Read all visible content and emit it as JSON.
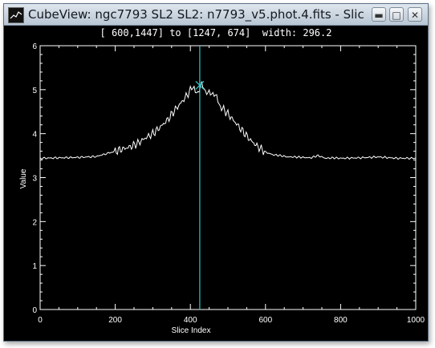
{
  "window": {
    "title": "CubeView: ngc7793 SL2 SL2: n7793_v5.phot.4.fits - Slice",
    "buttons": {
      "minimize": "▬",
      "maximize": "□",
      "close": "✕"
    }
  },
  "status": {
    "text": "[ 600,1447] to [1247, 674]  width: 296.2"
  },
  "colors": {
    "background": "#000000",
    "axes": "#ffffff",
    "series": "#ffffff",
    "cursor": "#2ec7c7"
  },
  "chart_data": {
    "type": "line",
    "title": "",
    "xlabel": "Slice Index",
    "ylabel": "Value",
    "xlim": [
      0,
      1000
    ],
    "ylim": [
      0,
      6
    ],
    "xticks": [
      0,
      200,
      400,
      600,
      800,
      1000
    ],
    "yticks": [
      0,
      1,
      2,
      3,
      4,
      5,
      6
    ],
    "grid": false,
    "legend": "none",
    "cursor_x": 425,
    "peak_marker": {
      "x": 425,
      "y": 5.1
    },
    "series": [
      {
        "x": [
          0,
          50,
          100,
          150,
          170,
          200,
          220,
          240,
          260,
          280,
          300,
          320,
          340,
          360,
          380,
          400,
          410,
          420,
          430,
          440,
          450,
          460,
          470,
          480,
          500,
          520,
          540,
          560,
          580,
          600,
          620,
          640,
          660,
          680,
          700,
          720,
          740,
          760,
          780,
          800,
          850,
          900,
          950,
          1000
        ],
        "y": [
          3.44,
          3.45,
          3.46,
          3.48,
          3.53,
          3.6,
          3.65,
          3.7,
          3.78,
          3.9,
          4.0,
          4.15,
          4.32,
          4.55,
          4.75,
          4.98,
          5.05,
          4.95,
          5.1,
          4.92,
          5.0,
          4.88,
          4.8,
          4.62,
          4.45,
          4.25,
          4.05,
          3.85,
          3.7,
          3.58,
          3.52,
          3.5,
          3.47,
          3.47,
          3.46,
          3.45,
          3.5,
          3.44,
          3.45,
          3.44,
          3.45,
          3.47,
          3.44,
          3.44
        ]
      }
    ]
  }
}
